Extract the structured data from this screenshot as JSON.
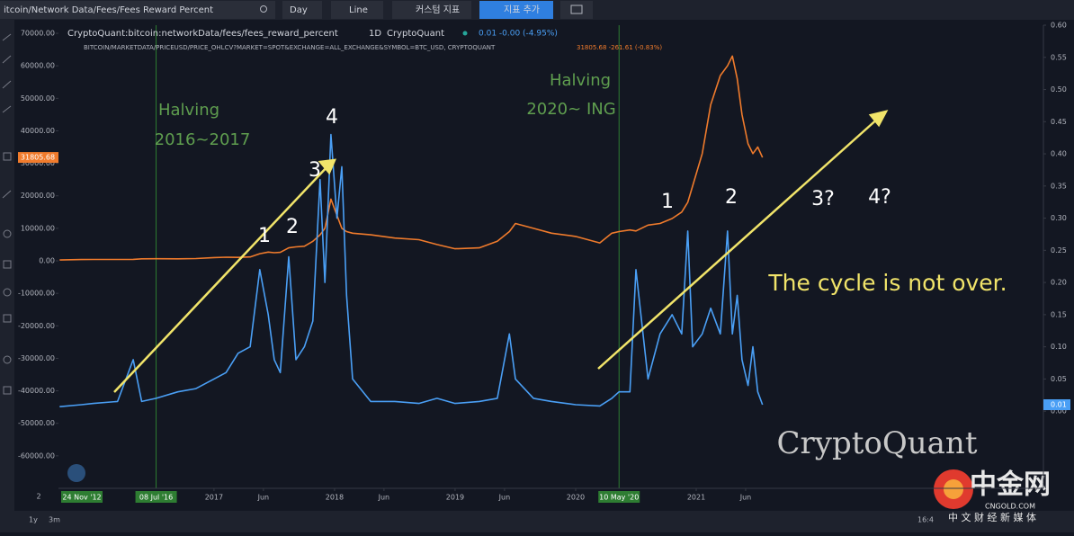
{
  "toolbar": {
    "search": "itcoin/Network Data/Fees/Fees Reward Percent",
    "interval": "Day",
    "style": "Line",
    "custom": "커스텀 지표",
    "add": "지표 추가"
  },
  "chart_data": {
    "type": "line",
    "legend": {
      "series1_title": "CryptoQuant:bitcoin:networkData/fees/fees_reward_percent",
      "series1_interval": "1D",
      "series1_source": "CryptoQuant",
      "series1_stats": "0.01 -0.00 (-4.95%)",
      "series0_title": "BITCOIN/MARKETDATA/PRICEUSD/PRICE_OHLCV?MARKET=SPOT&EXCHANGE=ALL_EXCHANGE&SYMBOL=BTC_USD, CRYPTOQUANT",
      "series0_stats": "31805.68 -261.61 (-0.83%)"
    },
    "x": [
      2015.72,
      2015.9,
      2016.0,
      2016.2,
      2016.33,
      2016.4,
      2016.52,
      2016.7,
      2016.85,
      2017.0,
      2017.1,
      2017.2,
      2017.3,
      2017.38,
      2017.45,
      2017.5,
      2017.55,
      2017.62,
      2017.68,
      2017.75,
      2017.82,
      2017.88,
      2017.92,
      2017.97,
      2018.02,
      2018.06,
      2018.1,
      2018.15,
      2018.3,
      2018.5,
      2018.7,
      2018.85,
      2019.0,
      2019.2,
      2019.35,
      2019.45,
      2019.5,
      2019.65,
      2019.8,
      2020.0,
      2020.2,
      2020.3,
      2020.36,
      2020.45,
      2020.5,
      2020.6,
      2020.7,
      2020.8,
      2020.88,
      2020.93,
      2020.97,
      2021.05,
      2021.12,
      2021.2,
      2021.26,
      2021.3,
      2021.34,
      2021.38,
      2021.43,
      2021.47,
      2021.51,
      2021.55
    ],
    "series": [
      {
        "name": "BTC price",
        "color": "#f07b2c",
        "values": [
          250,
          400,
          430,
          420,
          450,
          600,
          650,
          620,
          700,
          1000,
          1100,
          1050,
          1200,
          2200,
          2700,
          2500,
          2600,
          4000,
          4300,
          4500,
          6000,
          8000,
          10000,
          19000,
          14000,
          10000,
          9000,
          8500,
          8000,
          7000,
          6500,
          5000,
          3700,
          4000,
          6000,
          9000,
          11500,
          10000,
          8500,
          7500,
          5500,
          8500,
          9000,
          9500,
          9200,
          11000,
          11500,
          13000,
          15000,
          18000,
          23000,
          33000,
          48000,
          57000,
          60000,
          63000,
          56000,
          45000,
          36000,
          33000,
          35000,
          31805.68
        ]
      },
      {
        "name": "Fees Reward Percent",
        "color": "#4a9ff5",
        "axis": "y2",
        "values": [
          0.007,
          0.01,
          0.012,
          0.015,
          0.08,
          0.015,
          0.02,
          0.03,
          0.035,
          0.05,
          0.06,
          0.09,
          0.1,
          0.22,
          0.15,
          0.08,
          0.06,
          0.24,
          0.08,
          0.1,
          0.14,
          0.36,
          0.2,
          0.43,
          0.3,
          0.38,
          0.18,
          0.05,
          0.015,
          0.015,
          0.012,
          0.02,
          0.012,
          0.015,
          0.02,
          0.12,
          0.05,
          0.02,
          0.015,
          0.01,
          0.008,
          0.02,
          0.03,
          0.03,
          0.22,
          0.05,
          0.12,
          0.15,
          0.12,
          0.28,
          0.1,
          0.12,
          0.16,
          0.12,
          0.28,
          0.12,
          0.18,
          0.08,
          0.04,
          0.1,
          0.03,
          0.01
        ]
      }
    ],
    "xlim": [
      2015.71,
      2023.88
    ],
    "xticks": [
      2017,
      {
        "value": 2017.41,
        "label": "Jun"
      },
      2018,
      {
        "value": 2018.41,
        "label": "Jun"
      },
      2019,
      {
        "value": 2019.41,
        "label": "Jun"
      },
      2020,
      2021,
      {
        "value": 2021.41,
        "label": "Jun"
      }
    ],
    "markers": [
      {
        "value": 2016.52,
        "label": "08 Jul '16"
      },
      {
        "value": 2020.36,
        "label": "10 May '20"
      }
    ],
    "start_label": "24 Nov '12",
    "ylim": [
      -70000,
      72500
    ],
    "yticks": [
      {
        "value": 70000,
        "label": "70000.00"
      },
      {
        "value": 60000,
        "label": "60000.00"
      },
      {
        "value": 50000,
        "label": "50000.00"
      },
      {
        "value": 40000,
        "label": "40000.00"
      },
      {
        "value": 30000,
        "label": "30000.00"
      },
      {
        "value": 20000,
        "label": "20000.00"
      },
      {
        "value": 10000,
        "label": "10000.00"
      },
      {
        "value": 0,
        "label": "0.00"
      },
      {
        "value": -10000,
        "label": "-10000.00"
      },
      {
        "value": -20000,
        "label": "-20000.00"
      },
      {
        "value": -30000,
        "label": "-30000.00"
      },
      {
        "value": -40000,
        "label": "-40000.00"
      },
      {
        "value": -50000,
        "label": "-50000.00"
      },
      {
        "value": -60000,
        "label": "-60000.00"
      }
    ],
    "y2lim": [
      -0.12,
      0.6
    ],
    "y2ticks": [
      {
        "value": 0.6,
        "label": "0.60"
      },
      {
        "value": 0.55,
        "label": "0.55"
      },
      {
        "value": 0.5,
        "label": "0.50"
      },
      {
        "value": 0.45,
        "label": "0.45"
      },
      {
        "value": 0.4,
        "label": "0.40"
      },
      {
        "value": 0.35,
        "label": "0.35"
      },
      {
        "value": 0.3,
        "label": "0.30"
      },
      {
        "value": 0.25,
        "label": "0.25"
      },
      {
        "value": 0.2,
        "label": "0.20"
      },
      {
        "value": 0.15,
        "label": "0.15"
      },
      {
        "value": 0.1,
        "label": "0.10"
      },
      {
        "value": 0.05,
        "label": "0.05"
      },
      {
        "value": 0,
        "label": "0.00"
      }
    ],
    "annotations": [
      {
        "text": "Halving",
        "color": "#5f9e4f"
      },
      {
        "text": "2016~2017",
        "color": "#5f9e4f"
      },
      {
        "text": "Halving",
        "color": "#5f9e4f"
      },
      {
        "text": "2020~ ING",
        "color": "#5f9e4f"
      },
      {
        "text": "1",
        "color": "#ffffff"
      },
      {
        "text": "2",
        "color": "#ffffff"
      },
      {
        "text": "3",
        "color": "#ffffff"
      },
      {
        "text": "4",
        "color": "#ffffff"
      },
      {
        "text": "1",
        "color": "#ffffff"
      },
      {
        "text": "2",
        "color": "#ffffff"
      },
      {
        "text": "3?",
        "color": "#ffffff"
      },
      {
        "text": "4?",
        "color": "#ffffff"
      },
      {
        "text": "The cycle is not over.",
        "color": "#f1e46a"
      },
      {
        "text": "CryptoQuant",
        "color": "#c8c8c8"
      }
    ]
  },
  "bottom_bar": {
    "page": "2",
    "ranges": [
      "1y",
      "3m"
    ],
    "time": "16:4"
  },
  "logo": {
    "name": "中金网",
    "domain": "CNGOLD.COM",
    "tagline": "中 文 财 经 新 媒 体"
  }
}
